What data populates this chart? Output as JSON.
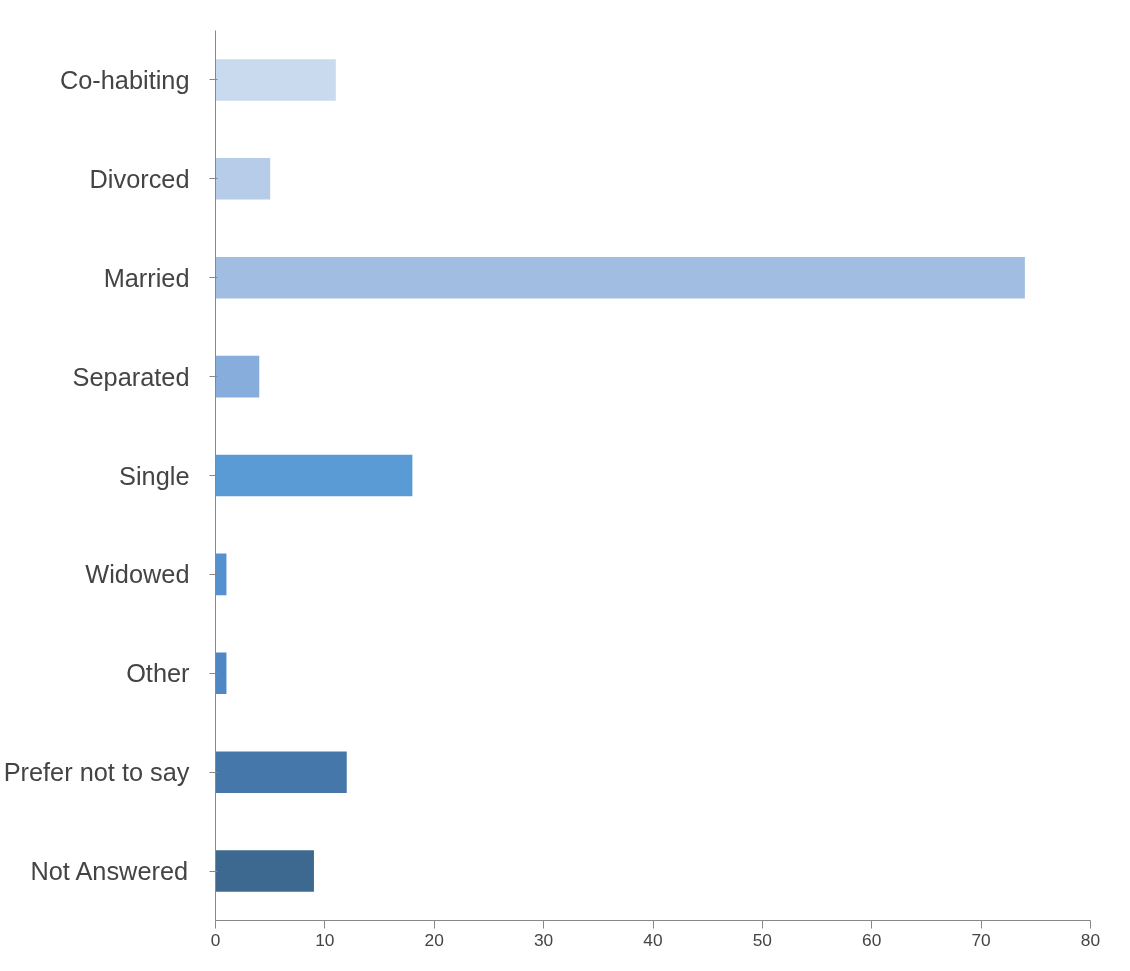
{
  "chart_data": {
    "type": "bar",
    "orientation": "horizontal",
    "categories": [
      "Co-habiting",
      "Divorced",
      "Married",
      "Separated",
      "Single",
      "Widowed",
      "Other",
      "Prefer not to say",
      "Not Answered"
    ],
    "values": [
      11,
      5,
      74,
      4,
      18,
      1,
      1,
      12,
      9
    ],
    "colors": [
      "#c9daee",
      "#b7cce9",
      "#a2bde2",
      "#87addc",
      "#5b9bd5",
      "#5590cf",
      "#4f86c3",
      "#4677aa",
      "#3d6890"
    ],
    "xlim": [
      0,
      80
    ],
    "xticks": [
      0,
      10,
      20,
      30,
      40,
      50,
      60,
      70,
      80
    ],
    "grid": false
  }
}
